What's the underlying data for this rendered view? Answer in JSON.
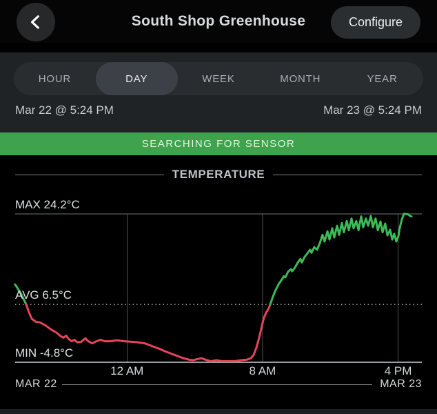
{
  "header": {
    "title": "South Shop Greenhouse",
    "configure_label": "Configure"
  },
  "tabs": {
    "items": [
      {
        "label": "HOUR",
        "selected": false
      },
      {
        "label": "DAY",
        "selected": true
      },
      {
        "label": "WEEK",
        "selected": false
      },
      {
        "label": "MONTH",
        "selected": false
      },
      {
        "label": "YEAR",
        "selected": false
      }
    ]
  },
  "date_range": {
    "start": "Mar 22 @ 5:24 PM",
    "end": "Mar 23 @ 5:24 PM"
  },
  "status_banner": {
    "text": "SEARCHING FOR SENSOR",
    "color": "#3ea34c"
  },
  "section": {
    "title": "TEMPERATURE"
  },
  "chart_data": {
    "type": "line",
    "title": "TEMPERATURE",
    "x_unit": "hours since Mar 22 @ 5:24 PM",
    "x_range": [
      0,
      24
    ],
    "y_unit": "°C",
    "max": {
      "label": "MAX 24.2°C",
      "value": 24.2
    },
    "avg": {
      "label": "AVG 6.5°C",
      "value": 6.5
    },
    "min": {
      "label": "MIN -4.8°C",
      "value": -4.8
    },
    "xticks": [
      {
        "label": "12 AM",
        "t": 6.6
      },
      {
        "label": "8 AM",
        "t": 14.6
      },
      {
        "label": "4 PM",
        "t": 22.6
      }
    ],
    "x_axis_ends": {
      "left": "MAR 22",
      "right": "MAR 23"
    },
    "legend": "line is green above AVG, red below AVG",
    "colors": {
      "above_avg": "#3dbb57",
      "below_avg": "#e6455a"
    },
    "series": [
      {
        "name": "temperature-above-avg-start",
        "color_key": "above_avg",
        "points": [
          [
            0,
            10.4
          ],
          [
            0.33,
            8.7
          ],
          [
            0.65,
            6.5
          ]
        ]
      },
      {
        "name": "temperature-below-avg",
        "color_key": "below_avg",
        "points": [
          [
            0.65,
            6.5
          ],
          [
            0.81,
            5.0
          ],
          [
            0.98,
            3.7
          ],
          [
            1.22,
            3.1
          ],
          [
            1.46,
            3.0
          ],
          [
            1.79,
            2.4
          ],
          [
            2.12,
            1.6
          ],
          [
            2.44,
            1.0
          ],
          [
            2.69,
            0.3
          ],
          [
            2.85,
            0.0
          ],
          [
            3.01,
            0.4
          ],
          [
            3.17,
            -0.3
          ],
          [
            3.34,
            -0.7
          ],
          [
            3.5,
            -0.4
          ],
          [
            3.66,
            -0.9
          ],
          [
            3.9,
            -0.8
          ],
          [
            4.15,
            -0.1
          ],
          [
            4.31,
            -0.7
          ],
          [
            4.56,
            -1.1
          ],
          [
            4.8,
            -0.7
          ],
          [
            5.04,
            -0.4
          ],
          [
            5.29,
            -0.7
          ],
          [
            5.61,
            -0.7
          ],
          [
            6.02,
            -0.5
          ],
          [
            6.43,
            -0.7
          ],
          [
            6.83,
            -0.8
          ],
          [
            7.24,
            -0.9
          ],
          [
            7.65,
            -1.1
          ],
          [
            8.05,
            -1.6
          ],
          [
            8.46,
            -2.1
          ],
          [
            8.87,
            -2.7
          ],
          [
            9.27,
            -3.2
          ],
          [
            9.6,
            -3.6
          ],
          [
            9.93,
            -4.0
          ],
          [
            10.25,
            -4.3
          ],
          [
            10.49,
            -4.4
          ],
          [
            10.74,
            -4.2
          ],
          [
            10.98,
            -4.0
          ],
          [
            11.23,
            -4.3
          ],
          [
            11.55,
            -4.6
          ],
          [
            11.88,
            -4.4
          ],
          [
            12.2,
            -4.6
          ],
          [
            12.53,
            -4.6
          ],
          [
            12.93,
            -4.6
          ],
          [
            13.34,
            -4.4
          ],
          [
            13.67,
            -4.3
          ],
          [
            13.91,
            -4.0
          ],
          [
            14.07,
            -3.4
          ],
          [
            14.24,
            -1.9
          ],
          [
            14.4,
            0.0
          ],
          [
            14.56,
            2.3
          ],
          [
            14.68,
            3.9
          ],
          [
            14.81,
            4.9
          ],
          [
            14.89,
            5.3
          ],
          [
            14.97,
            5.8
          ],
          [
            15.05,
            6.5
          ]
        ]
      },
      {
        "name": "temperature-above-avg",
        "color_key": "above_avg",
        "points": [
          [
            15.05,
            6.5
          ],
          [
            15.21,
            8.0
          ],
          [
            15.37,
            9.3
          ],
          [
            15.54,
            10.4
          ],
          [
            15.7,
            11.2
          ],
          [
            15.86,
            12.0
          ],
          [
            15.94,
            11.8
          ],
          [
            16.11,
            12.9
          ],
          [
            16.27,
            13.4
          ],
          [
            16.35,
            13.0
          ],
          [
            16.51,
            13.7
          ],
          [
            16.68,
            14.7
          ],
          [
            16.84,
            15.4
          ],
          [
            16.92,
            14.7
          ],
          [
            17.08,
            15.8
          ],
          [
            17.25,
            16.5
          ],
          [
            17.41,
            17.2
          ],
          [
            17.49,
            16.6
          ],
          [
            17.65,
            17.7
          ],
          [
            17.82,
            17.2
          ],
          [
            17.98,
            18.5
          ],
          [
            18.14,
            20.1
          ],
          [
            18.26,
            18.8
          ],
          [
            18.43,
            20.8
          ],
          [
            18.55,
            19.2
          ],
          [
            18.71,
            21.4
          ],
          [
            18.83,
            19.6
          ],
          [
            19.0,
            21.9
          ],
          [
            19.12,
            20.1
          ],
          [
            19.28,
            22.4
          ],
          [
            19.4,
            20.6
          ],
          [
            19.57,
            22.8
          ],
          [
            19.69,
            21.0
          ],
          [
            19.85,
            23.3
          ],
          [
            19.97,
            21.4
          ],
          [
            20.13,
            22.8
          ],
          [
            20.26,
            21.0
          ],
          [
            20.42,
            23.7
          ],
          [
            20.54,
            21.6
          ],
          [
            20.7,
            23.3
          ],
          [
            20.83,
            21.9
          ],
          [
            20.99,
            23.8
          ],
          [
            21.11,
            21.6
          ],
          [
            21.27,
            23.3
          ],
          [
            21.4,
            21.0
          ],
          [
            21.56,
            22.7
          ],
          [
            21.68,
            20.6
          ],
          [
            21.84,
            22.3
          ],
          [
            21.97,
            20.0
          ],
          [
            22.13,
            21.1
          ],
          [
            22.25,
            19.2
          ],
          [
            22.37,
            20.3
          ],
          [
            22.49,
            18.8
          ],
          [
            22.62,
            19.9
          ],
          [
            22.7,
            21.5
          ],
          [
            22.82,
            23.1
          ],
          [
            22.94,
            24.2
          ],
          [
            23.06,
            24.2
          ],
          [
            23.19,
            24.1
          ],
          [
            23.31,
            23.8
          ],
          [
            23.39,
            23.7
          ]
        ]
      }
    ]
  }
}
